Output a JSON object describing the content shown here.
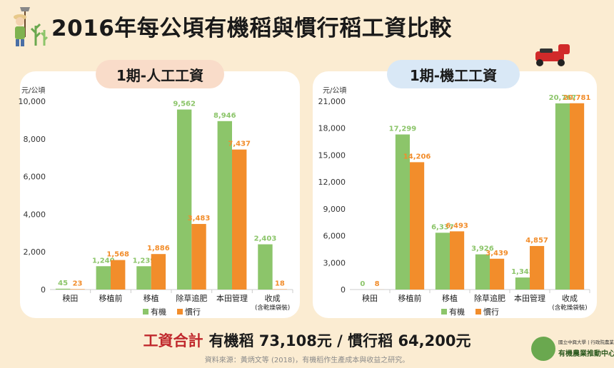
{
  "title": "2016年每公頃有機稻與慣行稻工資比較",
  "panels": {
    "left_label": "1期-人工工資",
    "right_label": "1期-機工工資"
  },
  "summary": {
    "label": "工資合計",
    "text": "有機稻 73,108元 / 慣行稻 64,200元"
  },
  "source": "資料來源：黃炳文等 (2018)，有機稻作生產成本與收益之研究。",
  "logo": {
    "small_text": "國立中興大學 | 行政院農業委員會",
    "big_text": "有機農業推動中心"
  },
  "colors": {
    "organic": "#8cc56a",
    "conventional": "#f28d2b",
    "background": "#fbecd2"
  },
  "chart_data": [
    {
      "type": "bar",
      "title": "1期-人工工資",
      "ylabel": "元/公頃",
      "categories": [
        "秧田",
        "移植前",
        "移植",
        "除草追肥",
        "本田管理",
        "收成"
      ],
      "category_sublabels": [
        "",
        "",
        "",
        "",
        "",
        "(含乾燥袋裝)"
      ],
      "ylim": [
        0,
        10000
      ],
      "yticks": [
        0,
        2000,
        4000,
        6000,
        8000,
        10000
      ],
      "ytick_labels": [
        "0",
        "2,000",
        "4,000",
        "6,000",
        "8,000",
        "10,000"
      ],
      "series": [
        {
          "name": "有機",
          "color": "#8cc56a",
          "values": [
            45,
            1240,
            1239,
            9562,
            8946,
            2403
          ],
          "labels": [
            "45",
            "1,240",
            "1,239",
            "9,562",
            "8,946",
            "2,403"
          ]
        },
        {
          "name": "慣行",
          "color": "#f28d2b",
          "values": [
            23,
            1568,
            1886,
            3483,
            7437,
            18
          ],
          "labels": [
            "23",
            "1,568",
            "1,886",
            "3,483",
            "7,437",
            "18"
          ]
        }
      ],
      "legend": "bottom-center"
    },
    {
      "type": "bar",
      "title": "1期-機工工資",
      "ylabel": "元/公頃",
      "categories": [
        "秧田",
        "移植前",
        "移植",
        "除草追肥",
        "本田管理",
        "收成"
      ],
      "category_sublabels": [
        "",
        "",
        "",
        "",
        "",
        "(含乾燥袋裝)"
      ],
      "ylim": [
        0,
        21000
      ],
      "yticks": [
        0,
        3000,
        6000,
        9000,
        12000,
        15000,
        18000,
        21000
      ],
      "ytick_labels": [
        "0",
        "3,000",
        "6,000",
        "9,000",
        "12,000",
        "15,000",
        "18,000",
        "21,000"
      ],
      "series": [
        {
          "name": "有機",
          "color": "#8cc56a",
          "values": [
            0,
            17299,
            6337,
            3926,
            1345,
            20767
          ],
          "labels": [
            "0",
            "17,299",
            "6,337",
            "3,926",
            "1,345",
            "20,767"
          ]
        },
        {
          "name": "慣行",
          "color": "#f28d2b",
          "values": [
            8,
            14206,
            6493,
            3439,
            4857,
            20781
          ],
          "labels": [
            "8",
            "14,206",
            "6,493",
            "3,439",
            "4,857",
            "20,781"
          ]
        }
      ],
      "legend": "bottom-center"
    }
  ]
}
